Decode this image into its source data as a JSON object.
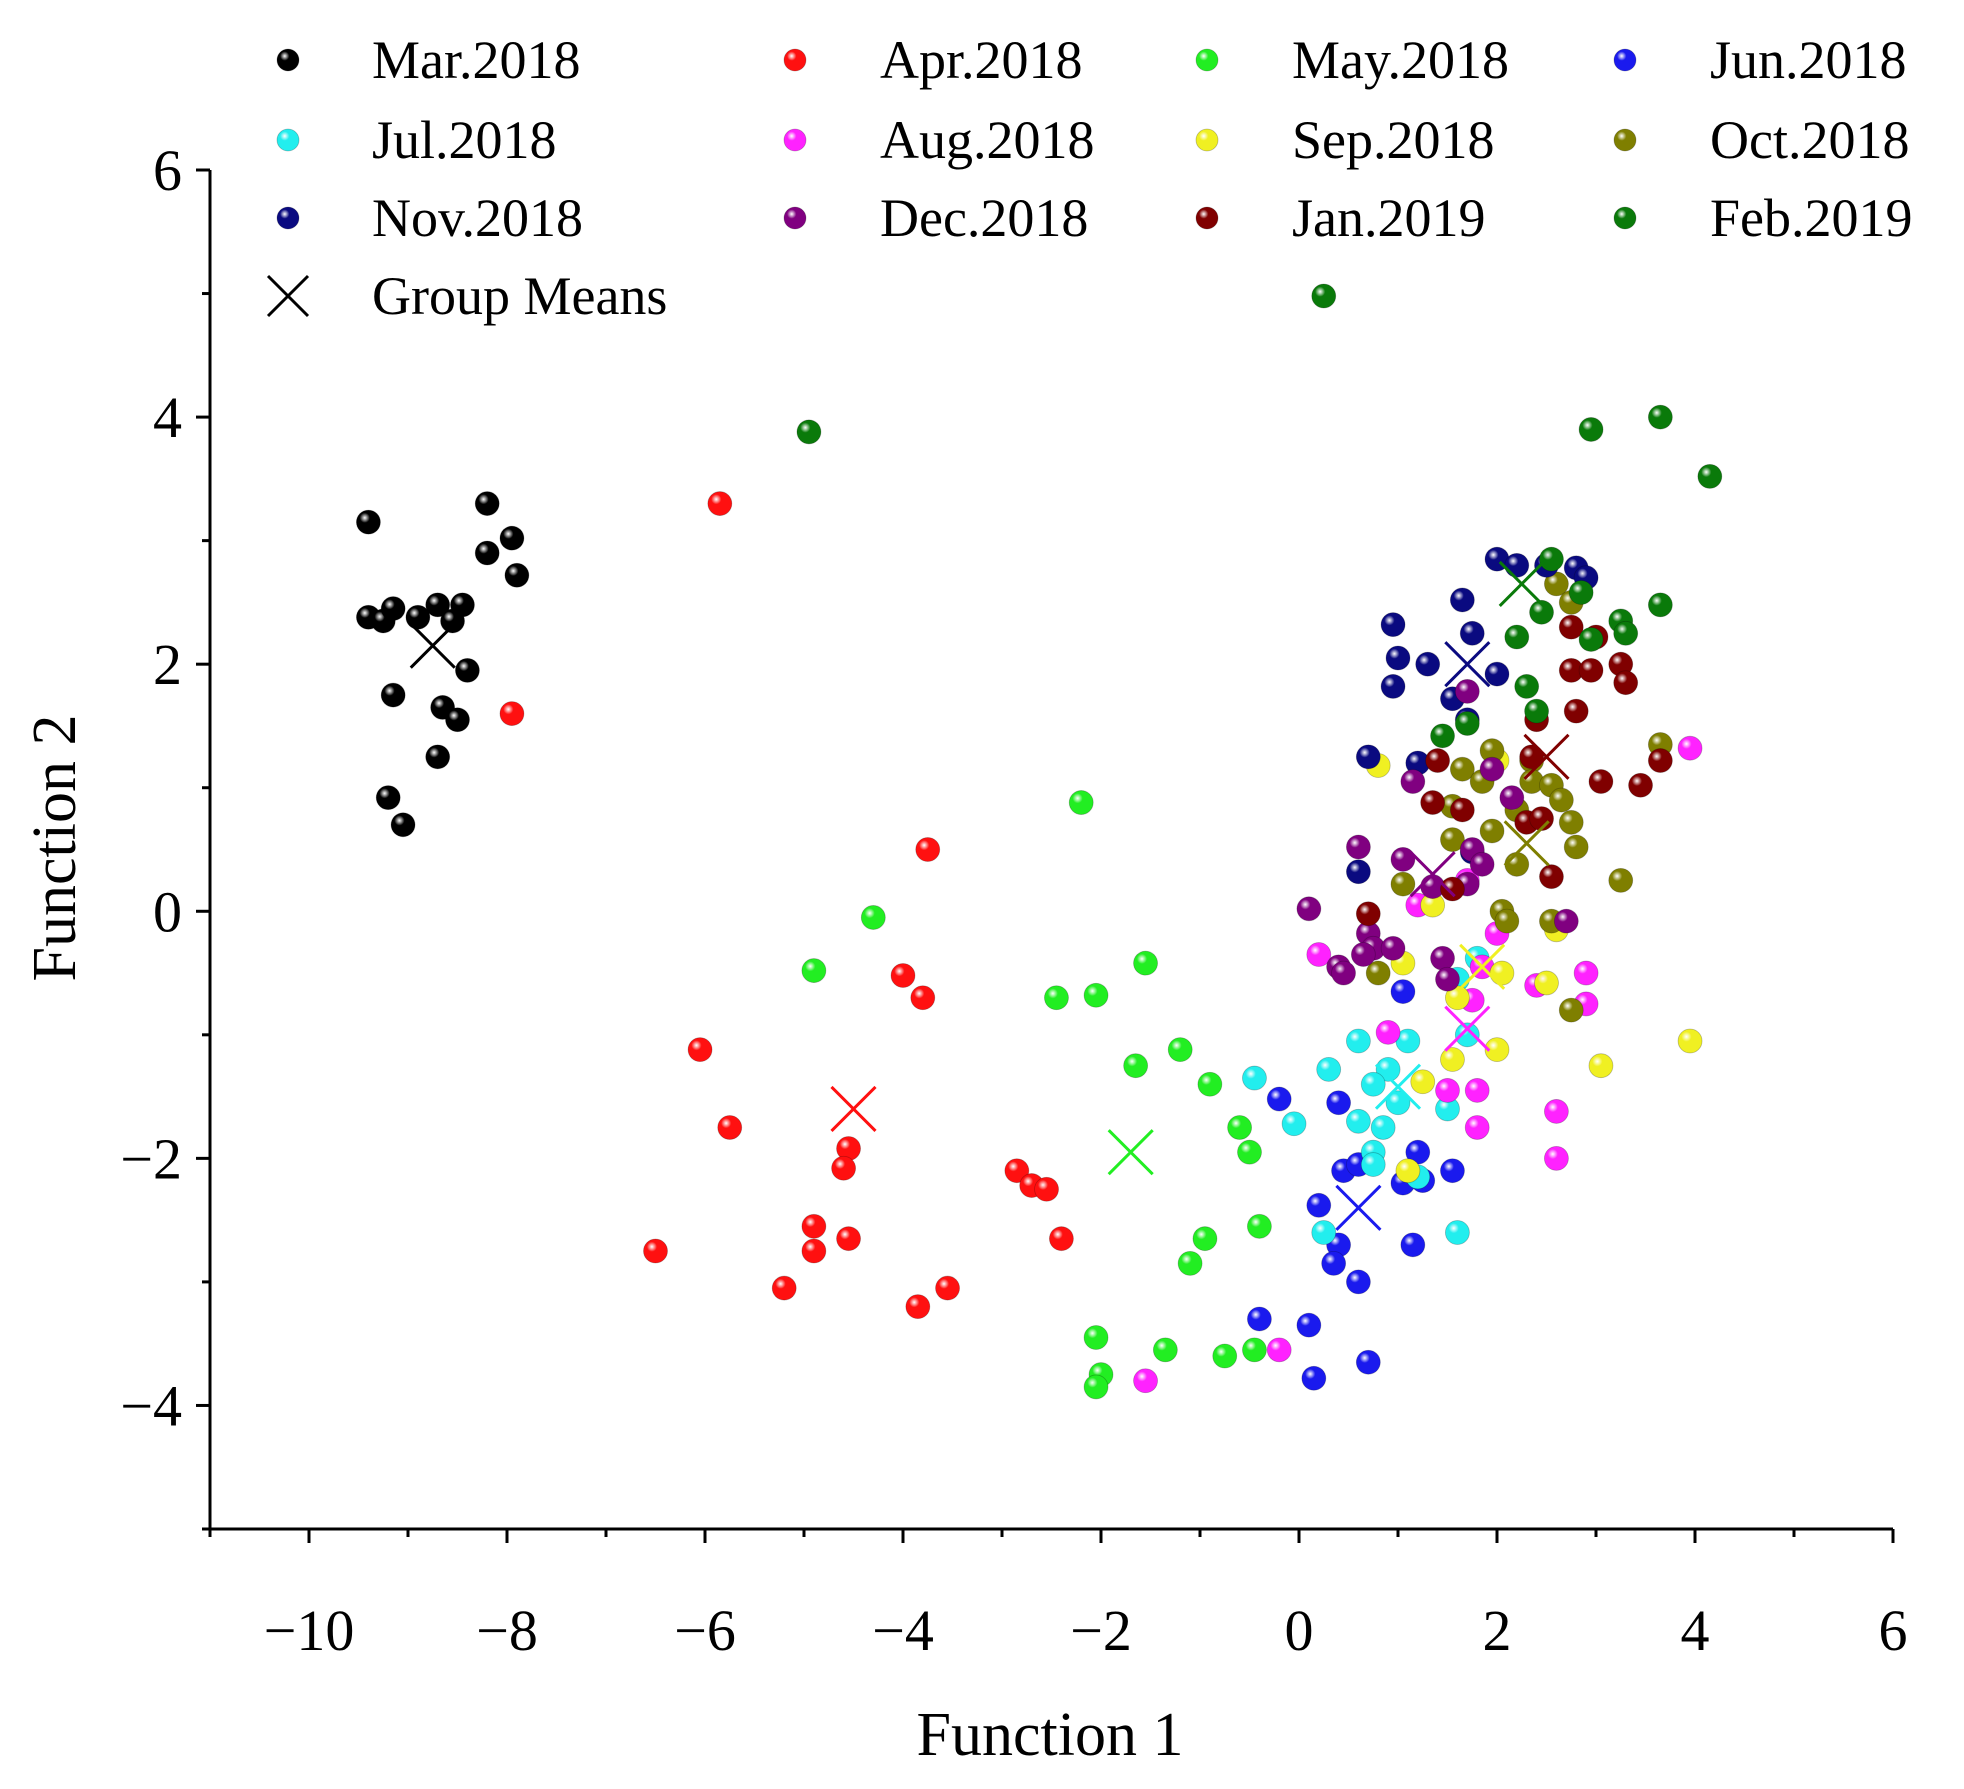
{
  "chart_data": {
    "type": "scatter",
    "title": "",
    "xlabel": "Function 1",
    "ylabel": "Function 2",
    "xlim": [
      -11,
      6
    ],
    "ylim": [
      -5,
      6
    ],
    "xticks": [
      -10,
      -8,
      -6,
      -4,
      -2,
      0,
      2,
      4,
      6
    ],
    "yticks": [
      -4,
      -2,
      0,
      2,
      4,
      6
    ],
    "x_tick_labels": [
      "−10",
      "−8",
      "−6",
      "−4",
      "−2",
      "0",
      "2",
      "4",
      "6"
    ],
    "y_tick_labels": [
      "−4",
      "−2",
      "0",
      "2",
      "4",
      "6"
    ],
    "legend_position": "top",
    "means_label": "Group Means",
    "series": [
      {
        "name": "Mar.2018",
        "color": "#000000",
        "mean": [
          -8.75,
          2.15
        ],
        "points": [
          [
            -9.4,
            3.15
          ],
          [
            -8.2,
            3.3
          ],
          [
            -7.95,
            3.02
          ],
          [
            -8.2,
            2.9
          ],
          [
            -7.9,
            2.72
          ],
          [
            -9.4,
            2.38
          ],
          [
            -9.25,
            2.35
          ],
          [
            -9.15,
            2.45
          ],
          [
            -8.9,
            2.38
          ],
          [
            -8.7,
            2.48
          ],
          [
            -8.55,
            2.35
          ],
          [
            -8.45,
            2.48
          ],
          [
            -8.4,
            1.95
          ],
          [
            -9.15,
            1.75
          ],
          [
            -8.65,
            1.65
          ],
          [
            -8.5,
            1.55
          ],
          [
            -8.7,
            1.25
          ],
          [
            -9.2,
            0.92
          ],
          [
            -9.05,
            0.7
          ]
        ]
      },
      {
        "name": "Apr.2018",
        "color": "#ff1010",
        "mean": [
          -4.5,
          -1.6
        ],
        "points": [
          [
            -5.85,
            3.3
          ],
          [
            -7.95,
            1.6
          ],
          [
            -3.75,
            0.5
          ],
          [
            -4.0,
            -0.52
          ],
          [
            -3.8,
            -0.7
          ],
          [
            -6.05,
            -1.12
          ],
          [
            -5.75,
            -1.75
          ],
          [
            -4.55,
            -1.92
          ],
          [
            -4.6,
            -2.08
          ],
          [
            -2.85,
            -2.1
          ],
          [
            -2.7,
            -2.22
          ],
          [
            -2.55,
            -2.25
          ],
          [
            -4.9,
            -2.55
          ],
          [
            -4.55,
            -2.65
          ],
          [
            -2.4,
            -2.65
          ],
          [
            -6.5,
            -2.75
          ],
          [
            -4.9,
            -2.75
          ],
          [
            -5.2,
            -3.05
          ],
          [
            -3.55,
            -3.05
          ],
          [
            -3.85,
            -3.2
          ]
        ]
      },
      {
        "name": "May.2018",
        "color": "#22ee22",
        "mean": [
          -1.7,
          -1.95
        ],
        "points": [
          [
            -2.2,
            0.88
          ],
          [
            -4.3,
            -0.05
          ],
          [
            -4.9,
            -0.48
          ],
          [
            -1.55,
            -0.42
          ],
          [
            -2.45,
            -0.7
          ],
          [
            -2.05,
            -0.68
          ],
          [
            -1.2,
            -1.12
          ],
          [
            -1.65,
            -1.25
          ],
          [
            -0.9,
            -1.4
          ],
          [
            -0.6,
            -1.75
          ],
          [
            -0.5,
            -1.95
          ],
          [
            -0.4,
            -2.55
          ],
          [
            -0.95,
            -2.65
          ],
          [
            -1.1,
            -2.85
          ],
          [
            -2.05,
            -3.45
          ],
          [
            -1.35,
            -3.55
          ],
          [
            -0.75,
            -3.6
          ],
          [
            -0.45,
            -3.55
          ],
          [
            -2.0,
            -3.75
          ],
          [
            -2.05,
            -3.85
          ]
        ]
      },
      {
        "name": "Jun.2018",
        "color": "#1a1aee",
        "mean": [
          0.6,
          -2.4
        ],
        "points": [
          [
            1.05,
            -0.65
          ],
          [
            -0.2,
            -1.52
          ],
          [
            0.4,
            -1.55
          ],
          [
            1.2,
            -1.95
          ],
          [
            0.45,
            -2.1
          ],
          [
            0.6,
            -2.05
          ],
          [
            1.05,
            -2.2
          ],
          [
            1.25,
            -2.18
          ],
          [
            1.55,
            -2.1
          ],
          [
            0.2,
            -2.38
          ],
          [
            0.4,
            -2.7
          ],
          [
            0.35,
            -2.85
          ],
          [
            0.6,
            -3.0
          ],
          [
            1.15,
            -2.7
          ],
          [
            -0.4,
            -3.3
          ],
          [
            0.1,
            -3.35
          ],
          [
            0.7,
            -3.65
          ],
          [
            0.15,
            -3.78
          ]
        ]
      },
      {
        "name": "Jul.2018",
        "color": "#22eeee",
        "mean": [
          1.0,
          -1.42
        ],
        "points": [
          [
            1.8,
            -0.38
          ],
          [
            1.6,
            -0.55
          ],
          [
            0.6,
            -1.05
          ],
          [
            1.1,
            -1.05
          ],
          [
            1.7,
            -1.0
          ],
          [
            0.3,
            -1.28
          ],
          [
            0.9,
            -1.28
          ],
          [
            -0.45,
            -1.35
          ],
          [
            0.75,
            -1.4
          ],
          [
            1.0,
            -1.55
          ],
          [
            1.5,
            -1.6
          ],
          [
            0.6,
            -1.7
          ],
          [
            0.85,
            -1.75
          ],
          [
            -0.05,
            -1.72
          ],
          [
            0.75,
            -1.95
          ],
          [
            0.75,
            -2.05
          ],
          [
            1.2,
            -2.15
          ],
          [
            0.25,
            -2.6
          ],
          [
            1.6,
            -2.6
          ]
        ]
      },
      {
        "name": "Aug.2018",
        "color": "#ff22ff",
        "mean": [
          1.7,
          -0.95
        ],
        "points": [
          [
            3.95,
            1.32
          ],
          [
            1.2,
            0.05
          ],
          [
            1.7,
            0.25
          ],
          [
            2.0,
            -0.18
          ],
          [
            0.2,
            -0.35
          ],
          [
            1.85,
            -0.45
          ],
          [
            2.9,
            -0.5
          ],
          [
            1.75,
            -0.72
          ],
          [
            2.4,
            -0.6
          ],
          [
            2.9,
            -0.75
          ],
          [
            0.9,
            -0.98
          ],
          [
            1.5,
            -1.45
          ],
          [
            1.8,
            -1.45
          ],
          [
            1.8,
            -1.75
          ],
          [
            2.6,
            -1.62
          ],
          [
            2.6,
            -2.0
          ],
          [
            -0.2,
            -3.55
          ],
          [
            -1.55,
            -3.8
          ]
        ]
      },
      {
        "name": "Sep.2018",
        "color": "#f0f022",
        "mean": [
          1.85,
          -0.45
        ],
        "points": [
          [
            0.8,
            1.18
          ],
          [
            2.0,
            1.22
          ],
          [
            1.35,
            0.05
          ],
          [
            2.6,
            -0.15
          ],
          [
            1.05,
            -0.42
          ],
          [
            2.05,
            -0.5
          ],
          [
            2.5,
            -0.58
          ],
          [
            1.6,
            -0.7
          ],
          [
            2.0,
            -1.12
          ],
          [
            1.55,
            -1.2
          ],
          [
            1.25,
            -1.38
          ],
          [
            3.05,
            -1.25
          ],
          [
            3.95,
            -1.05
          ],
          [
            1.1,
            -2.1
          ]
        ]
      },
      {
        "name": "Oct.2018",
        "color": "#7f7f00",
        "mean": [
          2.3,
          0.55
        ],
        "points": [
          [
            2.6,
            2.65
          ],
          [
            2.75,
            2.5
          ],
          [
            1.65,
            1.15
          ],
          [
            1.95,
            1.3
          ],
          [
            2.35,
            1.22
          ],
          [
            3.65,
            1.35
          ],
          [
            1.85,
            1.05
          ],
          [
            2.35,
            1.05
          ],
          [
            2.55,
            1.02
          ],
          [
            1.55,
            0.85
          ],
          [
            2.2,
            0.82
          ],
          [
            2.65,
            0.9
          ],
          [
            1.95,
            0.65
          ],
          [
            2.75,
            0.72
          ],
          [
            1.55,
            0.58
          ],
          [
            2.8,
            0.52
          ],
          [
            2.2,
            0.38
          ],
          [
            3.25,
            0.25
          ],
          [
            1.05,
            0.22
          ],
          [
            2.05,
            0.0
          ],
          [
            2.1,
            -0.08
          ],
          [
            2.55,
            -0.08
          ],
          [
            0.8,
            -0.5
          ],
          [
            2.75,
            -0.8
          ]
        ]
      },
      {
        "name": "Nov.2018",
        "color": "#0a0a80",
        "mean": [
          1.7,
          2.0
        ],
        "points": [
          [
            2.0,
            2.85
          ],
          [
            2.2,
            2.8
          ],
          [
            2.5,
            2.8
          ],
          [
            2.8,
            2.78
          ],
          [
            2.9,
            2.7
          ],
          [
            1.65,
            2.52
          ],
          [
            1.75,
            2.25
          ],
          [
            0.95,
            2.32
          ],
          [
            1.0,
            2.05
          ],
          [
            1.3,
            2.0
          ],
          [
            2.0,
            1.92
          ],
          [
            0.95,
            1.82
          ],
          [
            1.55,
            1.72
          ],
          [
            1.7,
            1.55
          ],
          [
            0.7,
            1.25
          ],
          [
            1.2,
            1.2
          ],
          [
            1.75,
            0.48
          ],
          [
            0.6,
            0.32
          ]
        ]
      },
      {
        "name": "Dec.2018",
        "color": "#800080",
        "mean": [
          1.35,
          0.3
        ],
        "points": [
          [
            1.7,
            1.78
          ],
          [
            1.95,
            1.15
          ],
          [
            2.15,
            0.92
          ],
          [
            1.15,
            1.05
          ],
          [
            0.6,
            0.52
          ],
          [
            1.05,
            0.42
          ],
          [
            1.75,
            0.5
          ],
          [
            1.85,
            0.38
          ],
          [
            1.35,
            0.2
          ],
          [
            1.7,
            0.22
          ],
          [
            0.1,
            0.02
          ],
          [
            0.7,
            -0.18
          ],
          [
            0.75,
            -0.3
          ],
          [
            0.95,
            -0.3
          ],
          [
            0.65,
            -0.35
          ],
          [
            0.4,
            -0.45
          ],
          [
            0.45,
            -0.5
          ],
          [
            1.45,
            -0.38
          ],
          [
            1.5,
            -0.55
          ],
          [
            2.7,
            -0.08
          ]
        ]
      },
      {
        "name": "Jan.2019",
        "color": "#800000",
        "mean": [
          2.5,
          1.25
        ],
        "points": [
          [
            2.75,
            2.3
          ],
          [
            3.0,
            2.22
          ],
          [
            3.25,
            2.0
          ],
          [
            2.75,
            1.95
          ],
          [
            3.3,
            1.85
          ],
          [
            2.95,
            1.95
          ],
          [
            2.8,
            1.62
          ],
          [
            2.4,
            1.55
          ],
          [
            1.4,
            1.22
          ],
          [
            2.35,
            1.25
          ],
          [
            3.65,
            1.22
          ],
          [
            3.05,
            1.05
          ],
          [
            3.45,
            1.02
          ],
          [
            1.35,
            0.88
          ],
          [
            1.65,
            0.82
          ],
          [
            2.3,
            0.72
          ],
          [
            2.45,
            0.75
          ],
          [
            2.55,
            0.28
          ],
          [
            1.55,
            0.18
          ],
          [
            0.7,
            -0.02
          ]
        ]
      },
      {
        "name": "Feb.2019",
        "color": "#0a7a0a",
        "mean": [
          2.25,
          2.65
        ],
        "points": [
          [
            0.25,
            4.98
          ],
          [
            -4.95,
            3.88
          ],
          [
            2.95,
            3.9
          ],
          [
            3.65,
            4.0
          ],
          [
            4.15,
            3.52
          ],
          [
            2.55,
            2.85
          ],
          [
            2.85,
            2.58
          ],
          [
            3.65,
            2.48
          ],
          [
            2.45,
            2.42
          ],
          [
            3.25,
            2.35
          ],
          [
            3.3,
            2.25
          ],
          [
            2.2,
            2.22
          ],
          [
            2.95,
            2.2
          ],
          [
            2.3,
            1.82
          ],
          [
            2.4,
            1.62
          ],
          [
            1.7,
            1.52
          ],
          [
            1.45,
            1.42
          ]
        ]
      }
    ]
  }
}
